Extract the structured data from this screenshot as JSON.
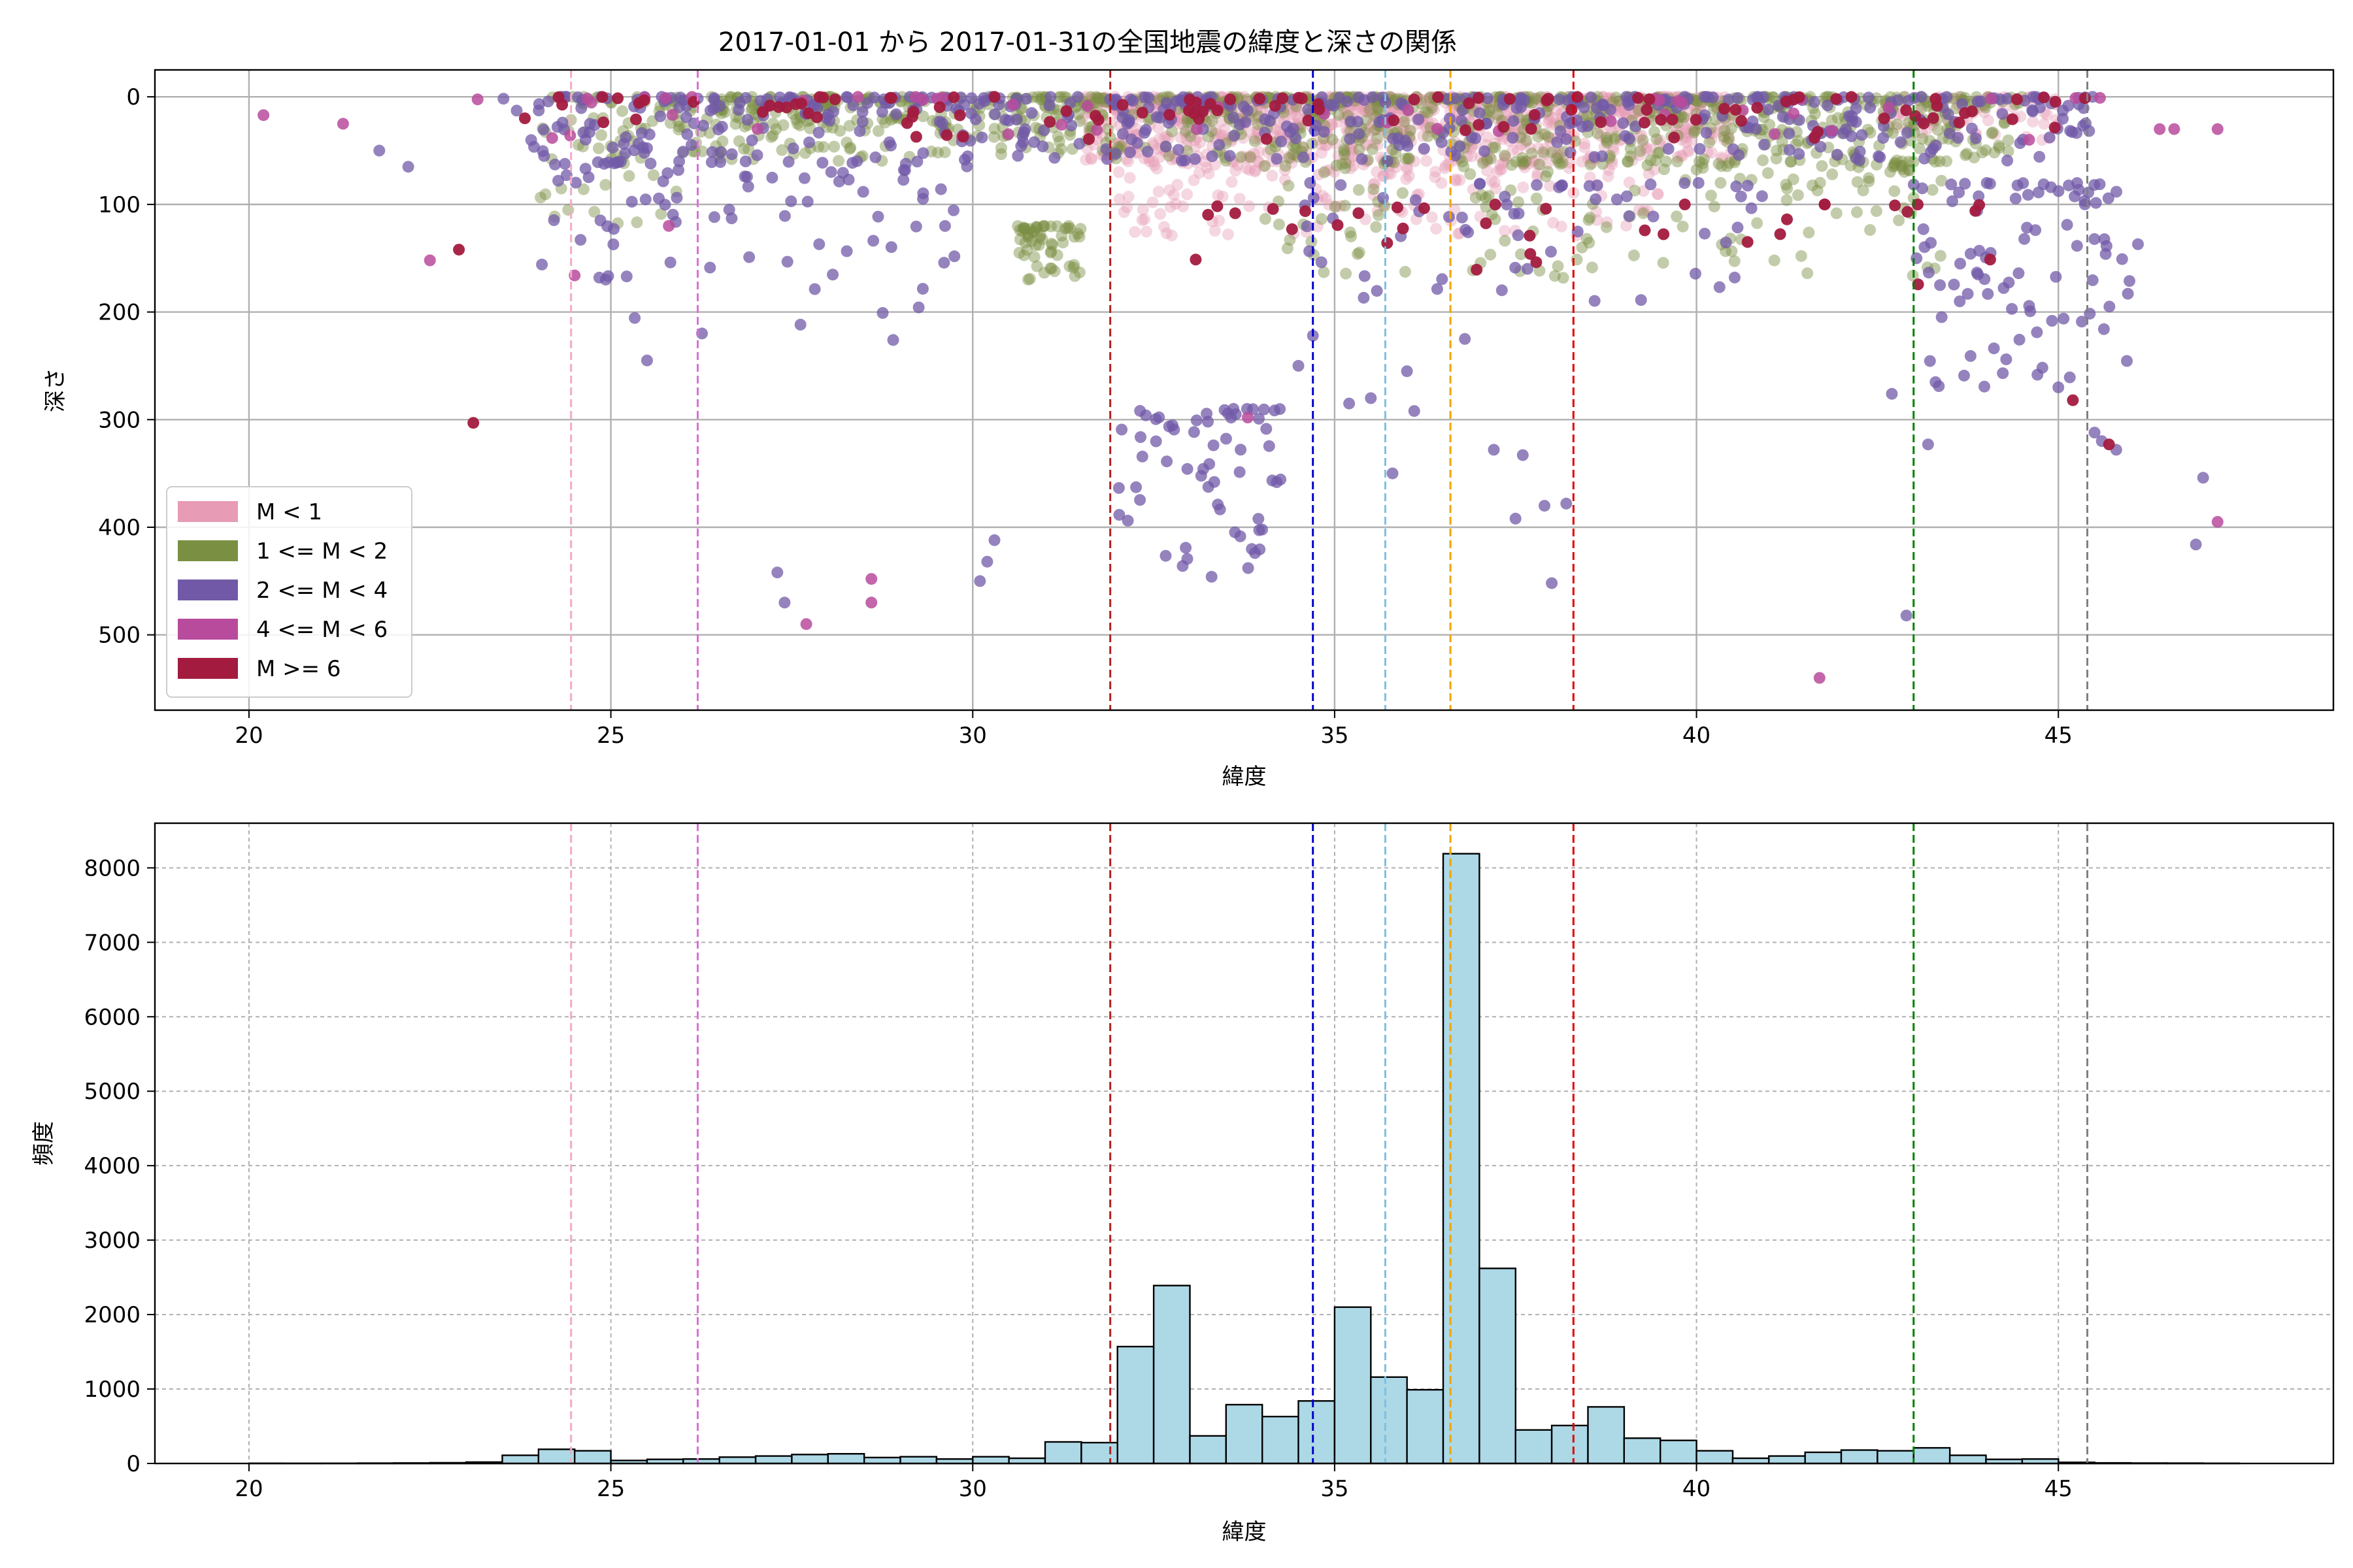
{
  "figure_title": "2017-01-01 から 2017-01-31の全国地震の緯度と深さの関係",
  "colors": {
    "M<1": "#e79bb5",
    "1<=M<2": "#7b8f42",
    "2<=M<4": "#7259a8",
    "4<=M<6": "#b84b9c",
    "M>=6": "#a31b3f",
    "hist_fill": "#add8e6",
    "hist_edge": "#000000",
    "grid": "#b0b0b0"
  },
  "chart_data": [
    {
      "type": "scatter",
      "xlabel": "緯度",
      "ylabel": "深さ",
      "xlim": [
        18.7,
        48.8
      ],
      "ylim": [
        570,
        -25
      ],
      "y_inverted": true,
      "xticks": [
        20,
        25,
        30,
        35,
        40,
        45
      ],
      "yticks": [
        0,
        100,
        200,
        300,
        400,
        500
      ],
      "grid": "solid",
      "legend_position": "lower-left",
      "legend": [
        {
          "label": "M < 1",
          "color_key": "M<1"
        },
        {
          "label": "1 <= M < 2",
          "color_key": "1<=M<2"
        },
        {
          "label": "2 <= M < 4",
          "color_key": "2<=M<4"
        },
        {
          "label": "4 <= M < 6",
          "color_key": "4<=M<6"
        },
        {
          "label": "M >= 6",
          "color_key": "M>=6"
        }
      ],
      "vlines": [
        {
          "x": 24.45,
          "color": "#f4a9c6"
        },
        {
          "x": 26.2,
          "color": "#da70d6"
        },
        {
          "x": 31.9,
          "color": "#b22222"
        },
        {
          "x": 34.7,
          "color": "#0000cd"
        },
        {
          "x": 35.7,
          "color": "#7ec0e0"
        },
        {
          "x": 36.6,
          "color": "#f0a500"
        },
        {
          "x": 38.3,
          "color": "#e00000"
        },
        {
          "x": 43.0,
          "color": "#008000"
        },
        {
          "x": 45.4,
          "color": "#808080"
        }
      ],
      "scatter_clusters": [
        {
          "cat": "M<1",
          "x": [
            31.5,
            40.5
          ],
          "y": [
            0,
            60
          ],
          "n": 900
        },
        {
          "cat": "M<1",
          "x": [
            32.0,
            39.5
          ],
          "y": [
            60,
            130
          ],
          "n": 180
        },
        {
          "cat": "M<1",
          "x": [
            42.5,
            45.0
          ],
          "y": [
            0,
            40
          ],
          "n": 80
        },
        {
          "cat": "1<=M<2",
          "x": [
            26.0,
            44.5
          ],
          "y": [
            0,
            60
          ],
          "n": 900
        },
        {
          "cat": "1<=M<2",
          "x": [
            30.6,
            31.5
          ],
          "y": [
            120,
            170
          ],
          "n": 60
        },
        {
          "cat": "1<=M<2",
          "x": [
            34.0,
            43.5
          ],
          "y": [
            60,
            170
          ],
          "n": 180
        },
        {
          "cat": "1<=M<2",
          "x": [
            24.0,
            26.0
          ],
          "y": [
            0,
            120
          ],
          "n": 70
        },
        {
          "cat": "2<=M<4",
          "x": [
            23.5,
            45.5
          ],
          "y": [
            0,
            60
          ],
          "n": 500
        },
        {
          "cat": "2<=M<4",
          "x": [
            24.0,
            30.0
          ],
          "y": [
            60,
            220
          ],
          "n": 90
        },
        {
          "cat": "2<=M<4",
          "x": [
            32.0,
            34.3
          ],
          "y": [
            290,
            440
          ],
          "n": 60
        },
        {
          "cat": "2<=M<4",
          "x": [
            43.0,
            46.0
          ],
          "y": [
            80,
            270
          ],
          "n": 90
        },
        {
          "cat": "2<=M<4",
          "x": [
            34.5,
            41.0
          ],
          "y": [
            80,
            200
          ],
          "n": 60
        },
        {
          "cat": "4<=M<6",
          "x": [
            22.5,
            46.5
          ],
          "y": [
            0,
            40
          ],
          "n": 45
        },
        {
          "cat": "M>=6",
          "x": [
            23.5,
            45.5
          ],
          "y": [
            0,
            40
          ],
          "n": 110
        },
        {
          "cat": "M>=6",
          "x": [
            33.0,
            44.5
          ],
          "y": [
            100,
            200
          ],
          "n": 35
        }
      ],
      "scatter_points": [
        {
          "cat": "4<=M<6",
          "x": 20.2,
          "y": 17
        },
        {
          "cat": "4<=M<6",
          "x": 21.3,
          "y": 25
        },
        {
          "cat": "2<=M<4",
          "x": 21.8,
          "y": 50
        },
        {
          "cat": "2<=M<4",
          "x": 22.2,
          "y": 65
        },
        {
          "cat": "4<=M<6",
          "x": 22.5,
          "y": 152
        },
        {
          "cat": "M>=6",
          "x": 22.9,
          "y": 142
        },
        {
          "cat": "M>=6",
          "x": 23.1,
          "y": 303
        },
        {
          "cat": "4<=M<6",
          "x": 24.5,
          "y": 166
        },
        {
          "cat": "2<=M<4",
          "x": 25.5,
          "y": 245
        },
        {
          "cat": "4<=M<6",
          "x": 25.8,
          "y": 120
        },
        {
          "cat": "2<=M<4",
          "x": 27.3,
          "y": 442
        },
        {
          "cat": "2<=M<4",
          "x": 27.4,
          "y": 470
        },
        {
          "cat": "4<=M<6",
          "x": 27.7,
          "y": 490
        },
        {
          "cat": "4<=M<6",
          "x": 28.6,
          "y": 448
        },
        {
          "cat": "4<=M<6",
          "x": 28.6,
          "y": 470
        },
        {
          "cat": "2<=M<4",
          "x": 28.9,
          "y": 226
        },
        {
          "cat": "2<=M<4",
          "x": 30.1,
          "y": 450
        },
        {
          "cat": "2<=M<4",
          "x": 30.2,
          "y": 432
        },
        {
          "cat": "2<=M<4",
          "x": 30.3,
          "y": 412
        },
        {
          "cat": "2<=M<4",
          "x": 32.9,
          "y": 436
        },
        {
          "cat": "2<=M<4",
          "x": 33.3,
          "y": 446
        },
        {
          "cat": "2<=M<4",
          "x": 33.9,
          "y": 424
        },
        {
          "cat": "4<=M<6",
          "x": 33.8,
          "y": 298
        },
        {
          "cat": "2<=M<4",
          "x": 34.7,
          "y": 222
        },
        {
          "cat": "2<=M<4",
          "x": 34.5,
          "y": 250
        },
        {
          "cat": "2<=M<4",
          "x": 35.2,
          "y": 285
        },
        {
          "cat": "2<=M<4",
          "x": 35.5,
          "y": 280
        },
        {
          "cat": "2<=M<4",
          "x": 35.8,
          "y": 350
        },
        {
          "cat": "2<=M<4",
          "x": 36.0,
          "y": 255
        },
        {
          "cat": "2<=M<4",
          "x": 36.1,
          "y": 292
        },
        {
          "cat": "2<=M<4",
          "x": 36.8,
          "y": 225
        },
        {
          "cat": "2<=M<4",
          "x": 37.2,
          "y": 328
        },
        {
          "cat": "2<=M<4",
          "x": 37.5,
          "y": 392
        },
        {
          "cat": "2<=M<4",
          "x": 37.6,
          "y": 333
        },
        {
          "cat": "2<=M<4",
          "x": 37.9,
          "y": 380
        },
        {
          "cat": "2<=M<4",
          "x": 38.0,
          "y": 452
        },
        {
          "cat": "2<=M<4",
          "x": 38.2,
          "y": 378
        },
        {
          "cat": "4<=M<6",
          "x": 41.7,
          "y": 540
        },
        {
          "cat": "2<=M<4",
          "x": 42.7,
          "y": 276
        },
        {
          "cat": "2<=M<4",
          "x": 42.9,
          "y": 482
        },
        {
          "cat": "2<=M<4",
          "x": 43.2,
          "y": 323
        },
        {
          "cat": "2<=M<4",
          "x": 45.0,
          "y": 270
        },
        {
          "cat": "M>=6",
          "x": 45.2,
          "y": 282
        },
        {
          "cat": "2<=M<4",
          "x": 45.5,
          "y": 312
        },
        {
          "cat": "2<=M<4",
          "x": 45.6,
          "y": 320
        },
        {
          "cat": "M>=6",
          "x": 45.7,
          "y": 323
        },
        {
          "cat": "2<=M<4",
          "x": 45.8,
          "y": 328
        },
        {
          "cat": "2<=M<4",
          "x": 46.1,
          "y": 137
        },
        {
          "cat": "2<=M<4",
          "x": 46.9,
          "y": 416
        },
        {
          "cat": "2<=M<4",
          "x": 47.0,
          "y": 354
        },
        {
          "cat": "4<=M<6",
          "x": 47.2,
          "y": 395
        },
        {
          "cat": "4<=M<6",
          "x": 47.2,
          "y": 30
        },
        {
          "cat": "4<=M<6",
          "x": 46.4,
          "y": 30
        },
        {
          "cat": "4<=M<6",
          "x": 46.6,
          "y": 30
        }
      ]
    },
    {
      "type": "bar",
      "xlabel": "緯度",
      "ylabel": "頻度",
      "xlim": [
        18.7,
        48.8
      ],
      "ylim": [
        0,
        8600
      ],
      "xticks": [
        20,
        25,
        30,
        35,
        40,
        45
      ],
      "yticks": [
        0,
        1000,
        2000,
        3000,
        4000,
        5000,
        6000,
        7000,
        8000
      ],
      "grid": "dashed",
      "bin_width": 0.5,
      "bins": [
        {
          "x0": 20.0,
          "v": 3
        },
        {
          "x0": 20.5,
          "v": 2
        },
        {
          "x0": 21.0,
          "v": 3
        },
        {
          "x0": 21.5,
          "v": 4
        },
        {
          "x0": 22.0,
          "v": 6
        },
        {
          "x0": 22.5,
          "v": 10
        },
        {
          "x0": 23.0,
          "v": 18
        },
        {
          "x0": 23.5,
          "v": 110
        },
        {
          "x0": 24.0,
          "v": 190
        },
        {
          "x0": 24.5,
          "v": 170
        },
        {
          "x0": 25.0,
          "v": 40
        },
        {
          "x0": 25.5,
          "v": 55
        },
        {
          "x0": 26.0,
          "v": 60
        },
        {
          "x0": 26.5,
          "v": 85
        },
        {
          "x0": 27.0,
          "v": 100
        },
        {
          "x0": 27.5,
          "v": 120
        },
        {
          "x0": 28.0,
          "v": 130
        },
        {
          "x0": 28.5,
          "v": 80
        },
        {
          "x0": 29.0,
          "v": 90
        },
        {
          "x0": 29.5,
          "v": 60
        },
        {
          "x0": 30.0,
          "v": 90
        },
        {
          "x0": 30.5,
          "v": 70
        },
        {
          "x0": 31.0,
          "v": 290
        },
        {
          "x0": 31.5,
          "v": 280
        },
        {
          "x0": 32.0,
          "v": 1570
        },
        {
          "x0": 32.5,
          "v": 2390
        },
        {
          "x0": 33.0,
          "v": 370
        },
        {
          "x0": 33.5,
          "v": 790
        },
        {
          "x0": 34.0,
          "v": 630
        },
        {
          "x0": 34.5,
          "v": 840
        },
        {
          "x0": 35.0,
          "v": 2100
        },
        {
          "x0": 35.5,
          "v": 1160
        },
        {
          "x0": 36.0,
          "v": 990
        },
        {
          "x0": 36.5,
          "v": 8190
        },
        {
          "x0": 37.0,
          "v": 2620
        },
        {
          "x0": 37.5,
          "v": 450
        },
        {
          "x0": 38.0,
          "v": 510
        },
        {
          "x0": 38.5,
          "v": 760
        },
        {
          "x0": 39.0,
          "v": 340
        },
        {
          "x0": 39.5,
          "v": 310
        },
        {
          "x0": 40.0,
          "v": 170
        },
        {
          "x0": 40.5,
          "v": 70
        },
        {
          "x0": 41.0,
          "v": 100
        },
        {
          "x0": 41.5,
          "v": 150
        },
        {
          "x0": 42.0,
          "v": 180
        },
        {
          "x0": 42.5,
          "v": 170
        },
        {
          "x0": 43.0,
          "v": 210
        },
        {
          "x0": 43.5,
          "v": 110
        },
        {
          "x0": 44.0,
          "v": 55
        },
        {
          "x0": 44.5,
          "v": 60
        },
        {
          "x0": 45.0,
          "v": 15
        },
        {
          "x0": 45.5,
          "v": 8
        },
        {
          "x0": 46.0,
          "v": 5
        },
        {
          "x0": 46.5,
          "v": 4
        },
        {
          "x0": 47.0,
          "v": 3
        }
      ],
      "vlines": [
        {
          "x": 24.45,
          "color": "#f4a9c6"
        },
        {
          "x": 26.2,
          "color": "#da70d6"
        },
        {
          "x": 31.9,
          "color": "#b22222"
        },
        {
          "x": 34.7,
          "color": "#0000cd"
        },
        {
          "x": 35.7,
          "color": "#7ec0e0"
        },
        {
          "x": 36.6,
          "color": "#f0a500"
        },
        {
          "x": 38.3,
          "color": "#e00000"
        },
        {
          "x": 43.0,
          "color": "#008000"
        },
        {
          "x": 45.4,
          "color": "#808080"
        }
      ]
    }
  ]
}
